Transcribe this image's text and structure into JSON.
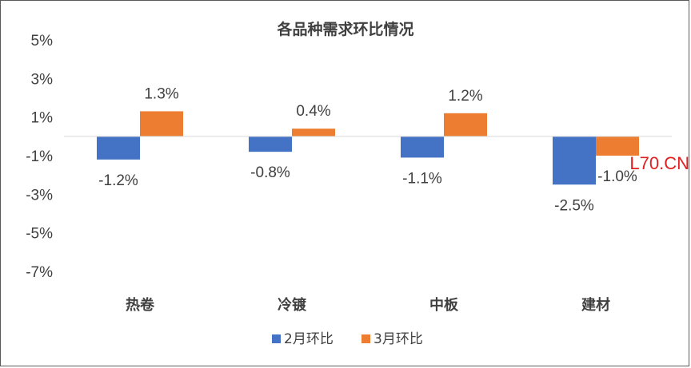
{
  "chart_data": {
    "type": "bar",
    "title": "各品种需求环比情况",
    "categories": [
      "热卷",
      "冷镀",
      "中板",
      "建材"
    ],
    "series": [
      {
        "name": "2月环比",
        "color": "#4472c4",
        "values": [
          -1.2,
          -0.8,
          -1.1,
          -2.5
        ],
        "labels": [
          "-1.2%",
          "-0.8%",
          "-1.1%",
          "-2.5%"
        ]
      },
      {
        "name": "3月环比",
        "color": "#ed7d31",
        "values": [
          1.3,
          0.4,
          1.2,
          -1.0
        ],
        "labels": [
          "1.3%",
          "0.4%",
          "1.2%",
          "-1.0%"
        ]
      }
    ],
    "y_ticks": [
      "5%",
      "3%",
      "1%",
      "-1%",
      "-3%",
      "-5%",
      "-7%"
    ],
    "y_tick_values": [
      5,
      3,
      1,
      -1,
      -3,
      -5,
      -7
    ],
    "ylim": [
      -7,
      5
    ],
    "legend_position": "bottom",
    "grid": false
  },
  "watermark": "L70.CN"
}
